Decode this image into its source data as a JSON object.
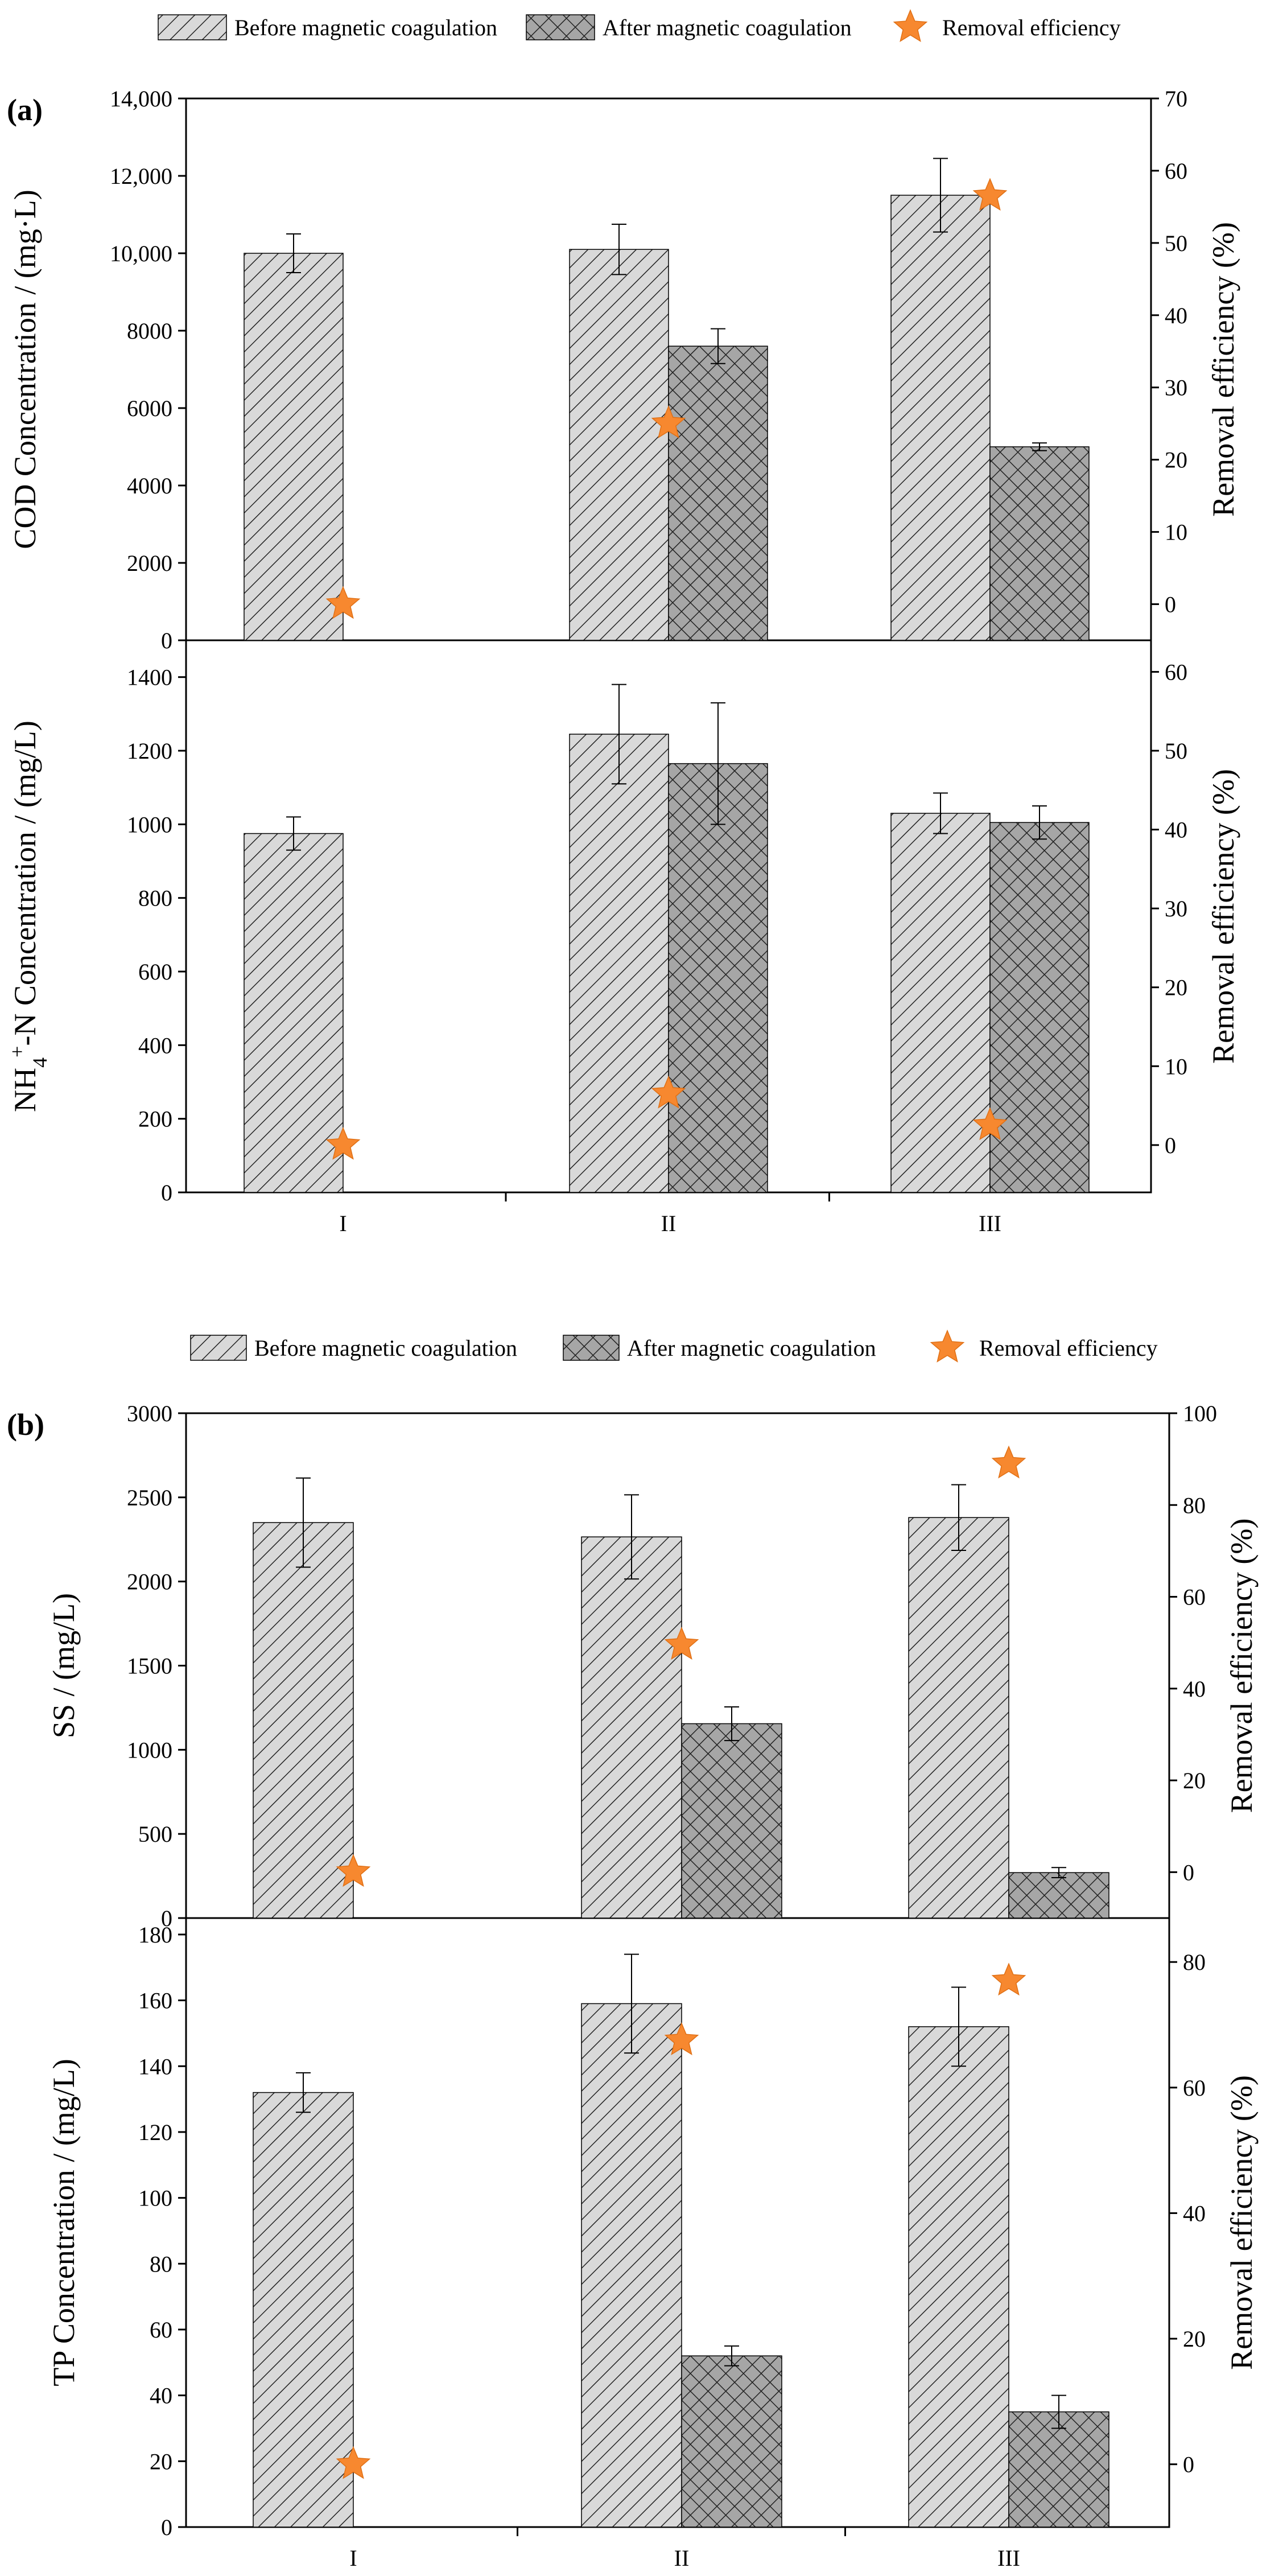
{
  "legend": {
    "before": "Before magnetic coagulation",
    "after": "After magnetic coagulation",
    "removal": "Removal efficiency"
  },
  "colors": {
    "bar_before_fill": "#d9d9d9",
    "bar_after_fill": "#a6a6a6",
    "hatch": "#222222",
    "star": "#f7882f",
    "star_stroke": "#e07015",
    "axis": "#000000"
  },
  "categories": [
    "I",
    "II",
    "III"
  ],
  "chart_data": [
    {
      "type": "bar",
      "panel_label": "(a)",
      "title": "",
      "categories": [
        "I",
        "II",
        "III"
      ],
      "ylabel": "COD Concentration / (mg·L)",
      "y2label": "Removal efficiency (%)",
      "ylim": [
        0,
        14000
      ],
      "yticks": [
        0,
        2000,
        4000,
        6000,
        8000,
        10000,
        12000,
        14000
      ],
      "ytick_labels": [
        "0",
        "2000",
        "4000",
        "6000",
        "8000",
        "10,000",
        "12,000",
        "14,000"
      ],
      "y2lim": [
        -5,
        70
      ],
      "y2ticks": [
        0,
        10,
        20,
        30,
        40,
        50,
        60,
        70
      ],
      "series": [
        {
          "name": "Before magnetic coagulation",
          "values": [
            10000,
            10100,
            11500
          ],
          "errors": [
            500,
            650,
            950
          ]
        },
        {
          "name": "After magnetic coagulation",
          "values": [
            null,
            7600,
            5000
          ],
          "errors": [
            null,
            450,
            100
          ]
        }
      ],
      "removal_efficiency": [
        0,
        25,
        56.5
      ]
    },
    {
      "type": "bar",
      "panel_label": "",
      "title": "",
      "categories": [
        "I",
        "II",
        "III"
      ],
      "ylabel": "NH4+-N Concentration / (mg/L)",
      "y2label": "Removal efficiency (%)",
      "ylim": [
        0,
        1500
      ],
      "yticks": [
        0,
        200,
        400,
        600,
        800,
        1000,
        1200,
        1400
      ],
      "ytick_labels": [
        "0",
        "200",
        "400",
        "600",
        "800",
        "1000",
        "1200",
        "1400"
      ],
      "y2lim": [
        -6,
        64
      ],
      "y2ticks": [
        0,
        10,
        20,
        30,
        40,
        50,
        60
      ],
      "series": [
        {
          "name": "Before magnetic coagulation",
          "values": [
            975,
            1245,
            1030
          ],
          "errors": [
            45,
            135,
            55
          ]
        },
        {
          "name": "After magnetic coagulation",
          "values": [
            null,
            1165,
            1005
          ],
          "errors": [
            null,
            165,
            45
          ]
        }
      ],
      "removal_efficiency": [
        0,
        6.5,
        2.5
      ]
    },
    {
      "type": "bar",
      "panel_label": "(b)",
      "title": "",
      "categories": [
        "I",
        "II",
        "III"
      ],
      "ylabel": "SS / (mg/L)",
      "y2label": "Removal efficiency (%)",
      "ylim": [
        0,
        3000
      ],
      "yticks": [
        0,
        500,
        1000,
        1500,
        2000,
        2500,
        3000
      ],
      "ytick_labels": [
        "0",
        "500",
        "1000",
        "1500",
        "2000",
        "2500",
        "3000"
      ],
      "y2lim": [
        -10,
        100
      ],
      "y2ticks": [
        0,
        20,
        40,
        60,
        80,
        100
      ],
      "series": [
        {
          "name": "Before magnetic coagulation",
          "values": [
            2350,
            2265,
            2380
          ],
          "errors": [
            265,
            250,
            195
          ]
        },
        {
          "name": "After magnetic coagulation",
          "values": [
            null,
            1155,
            270
          ],
          "errors": [
            null,
            100,
            30
          ]
        }
      ],
      "removal_efficiency": [
        0,
        49.5,
        89
      ]
    },
    {
      "type": "bar",
      "panel_label": "",
      "title": "",
      "categories": [
        "I",
        "II",
        "III"
      ],
      "ylabel": "TP Concentration / (mg/L)",
      "y2label": "Removal efficiency (%)",
      "ylim": [
        0,
        185
      ],
      "yticks": [
        0,
        20,
        40,
        60,
        80,
        100,
        120,
        140,
        160,
        180
      ],
      "ytick_labels": [
        "0",
        "20",
        "40",
        "60",
        "80",
        "100",
        "120",
        "140",
        "160",
        "180"
      ],
      "y2lim": [
        -10,
        87
      ],
      "y2ticks": [
        0,
        20,
        40,
        60,
        80
      ],
      "series": [
        {
          "name": "Before magnetic coagulation",
          "values": [
            132,
            159,
            152
          ],
          "errors": [
            6,
            15,
            12
          ]
        },
        {
          "name": "After magnetic coagulation",
          "values": [
            null,
            52,
            35
          ],
          "errors": [
            null,
            3,
            5
          ]
        }
      ],
      "removal_efficiency": [
        0,
        67.5,
        77
      ]
    }
  ]
}
